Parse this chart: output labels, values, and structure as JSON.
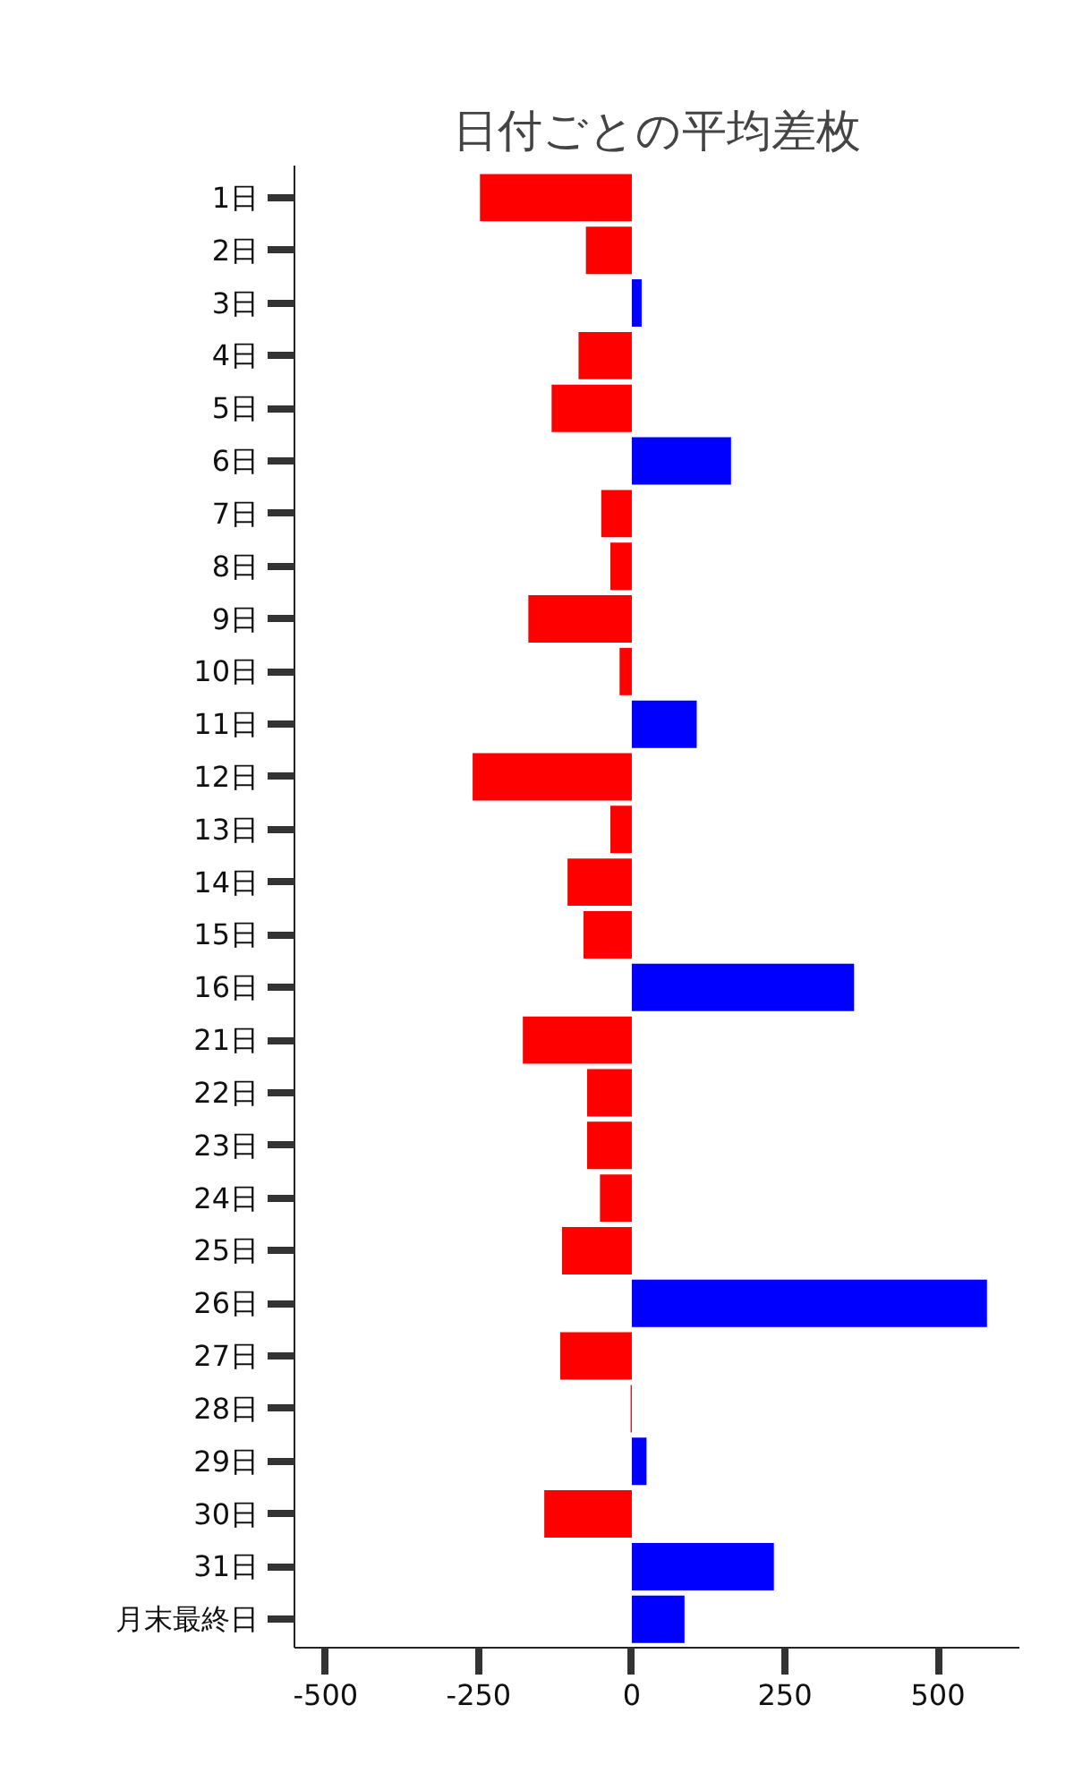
{
  "chart_data": {
    "type": "bar",
    "orientation": "horizontal",
    "title": "日付ごとの平均差枚",
    "categories": [
      "1日",
      "2日",
      "3日",
      "4日",
      "5日",
      "6日",
      "7日",
      "8日",
      "9日",
      "10日",
      "11日",
      "12日",
      "13日",
      "14日",
      "15日",
      "16日",
      "21日",
      "22日",
      "23日",
      "24日",
      "25日",
      "26日",
      "27日",
      "28日",
      "29日",
      "30日",
      "31日",
      "月末最終日"
    ],
    "values": [
      -248,
      -75,
      16,
      -87,
      -131,
      162,
      -50,
      -35,
      -169,
      -20,
      106,
      -260,
      -35,
      -105,
      -79,
      363,
      -178,
      -73,
      -73,
      -52,
      -114,
      580,
      -117,
      -2,
      24,
      -143,
      232,
      86
    ],
    "colors": [
      "#ff0000",
      "#ff0000",
      "#0000ff",
      "#ff0000",
      "#ff0000",
      "#0000ff",
      "#ff0000",
      "#ff0000",
      "#ff0000",
      "#ff0000",
      "#0000ff",
      "#ff0000",
      "#ff0000",
      "#ff0000",
      "#ff0000",
      "#0000ff",
      "#ff0000",
      "#ff0000",
      "#ff0000",
      "#ff0000",
      "#ff0000",
      "#0000ff",
      "#ff0000",
      "#ff0000",
      "#0000ff",
      "#ff0000",
      "#0000ff",
      "#0000ff"
    ],
    "xlim": [
      -551,
      633
    ],
    "xticks": [
      -500,
      -250,
      0,
      250,
      500
    ],
    "grid": false
  }
}
